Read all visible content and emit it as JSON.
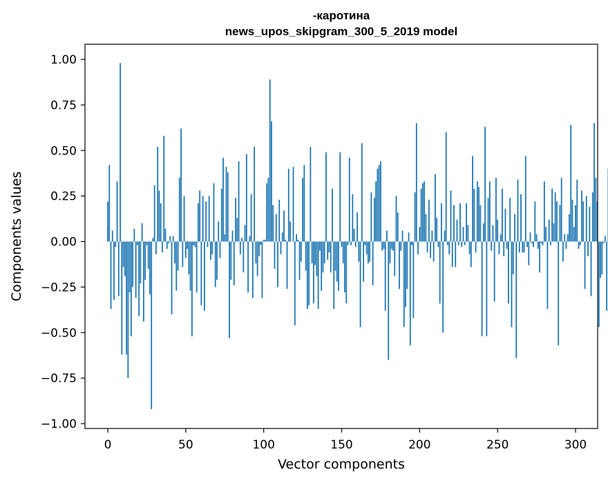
{
  "chart_data": {
    "type": "bar",
    "title_lines": [
      "-каротина",
      "news_upos_skipgram_300_5_2019 model"
    ],
    "xlabel": "Vector components",
    "ylabel": "Components values",
    "xlim": [
      -15,
      315
    ],
    "ylim": [
      -1.0,
      1.0
    ],
    "xticks": [
      0,
      50,
      100,
      150,
      200,
      250,
      300
    ],
    "xtick_labels": [
      "0",
      "50",
      "100",
      "150",
      "200",
      "250",
      "300"
    ],
    "yticks": [
      1.0,
      0.75,
      0.5,
      0.25,
      0.0,
      -0.25,
      -0.5,
      -0.75,
      -1.0
    ],
    "ytick_labels": [
      "1.00",
      "0.75",
      "0.50",
      "0.25",
      "0.00",
      "−0.25",
      "−0.50",
      "−0.75",
      "−1.00"
    ],
    "bar_color": "#1f77b4",
    "grid": false,
    "values": [
      0.22,
      0.42,
      -0.37,
      0.06,
      -0.32,
      -0.03,
      0.33,
      -0.3,
      0.98,
      -0.62,
      -0.14,
      -0.19,
      -0.62,
      -0.75,
      -0.28,
      -0.52,
      -0.25,
      0.07,
      -0.31,
      -0.02,
      -0.41,
      -0.23,
      0.1,
      -0.44,
      -0.21,
      -0.02,
      -0.15,
      -0.29,
      -0.92,
      0.02,
      0.31,
      -0.07,
      0.52,
      0.28,
      0.21,
      -0.06,
      0.58,
      0.07,
      -0.04,
      -0.01,
      0.03,
      -0.4,
      0.03,
      -0.12,
      -0.27,
      -0.16,
      0.35,
      0.62,
      -0.14,
      0.25,
      -0.09,
      -0.04,
      -0.18,
      -0.27,
      -0.52,
      -0.02,
      -0.03,
      -0.28,
      0.21,
      0.28,
      -0.35,
      0.25,
      -0.38,
      0.22,
      -0.03,
      0.25,
      -0.1,
      -0.07,
      0.32,
      -0.25,
      -0.21,
      0.11,
      -0.09,
      0.29,
      0.46,
      0.04,
      0.41,
      0.38,
      -0.53,
      -0.21,
      0.06,
      -0.24,
      0.24,
      0.13,
      0.44,
      -0.07,
      0.02,
      -0.17,
      0.09,
      0.48,
      -0.28,
      0.03,
      0.26,
      -0.31,
      0.52,
      -0.12,
      -0.19,
      -0.08,
      -0.02,
      -0.31,
      0.01,
      0.01,
      0.32,
      0.35,
      0.89,
      0.66,
      0.2,
      -0.15,
      0.15,
      -0.25,
      0.23,
      -0.07,
      0.05,
      0.17,
      0.01,
      -0.26,
      0.4,
      0.11,
      0.0,
      0.41,
      -0.46,
      0.04,
      0.01,
      -0.21,
      -0.11,
      0.35,
      0.42,
      -0.16,
      -0.37,
      -0.35,
      0.52,
      -0.12,
      -0.34,
      -0.13,
      -0.19,
      -0.37,
      -0.05,
      -0.27,
      -0.17,
      -0.12,
      0.49,
      -0.1,
      -0.06,
      -0.17,
      0.29,
      -0.37,
      -0.16,
      -0.22,
      -0.27,
      0.49,
      -0.03,
      -0.12,
      -0.28,
      -0.34,
      -0.02,
      0.46,
      -0.02,
      0.26,
      0.07,
      -0.03,
      0.16,
      -0.11,
      -0.47,
      0.54,
      -0.22,
      -0.02,
      -0.07,
      -0.12,
      -0.11,
      0.27,
      -0.24,
      0.24,
      0.33,
      0.4,
      0.42,
      0.44,
      -0.05,
      -0.04,
      -0.38,
      0.06,
      -0.65,
      -0.12,
      -0.04,
      -0.05,
      -0.19,
      0.25,
      0.16,
      -0.26,
      -0.05,
      0.06,
      -0.47,
      -0.36,
      -0.26,
      0.05,
      -0.57,
      -0.02,
      -0.42,
      0.27,
      0.65,
      -0.07,
      0.08,
      0.29,
      0.32,
      0.33,
      0.15,
      -0.06,
      0.23,
      -0.09,
      0.06,
      -0.11,
      0.37,
      0.13,
      -0.03,
      -0.34,
      0.21,
      -0.5,
      0.06,
      0.6,
      -0.02,
      -0.07,
      0.28,
      -0.14,
      0.2,
      -0.14,
      0.12,
      -0.02,
      0.21,
      -0.03,
      0.08,
      -0.02,
      0.21,
      0.09,
      -0.07,
      -0.14,
      0.47,
      0.29,
      -0.06,
      0.33,
      0.3,
      0.2,
      -0.52,
      0.1,
      0.63,
      -0.52,
      0.24,
      0.33,
      -0.05,
      0.09,
      -0.33,
      0.35,
      0.12,
      -0.07,
      0.04,
      0.29,
      -0.08,
      0.18,
      -0.04,
      -0.34,
      0.24,
      -0.47,
      -0.18,
      0.15,
      -0.64,
      0.34,
      -0.06,
      0.26,
      -0.06,
      -0.06,
      0.47,
      -0.03,
      -0.13,
      0.05,
      -0.01,
      -0.03,
      0.22,
      0.04,
      -0.04,
      -0.17,
      -0.01,
      -0.02,
      0.33,
      0.08,
      -0.37,
      0.12,
      -0.02,
      0.29,
      0.1,
      0.27,
      0.22,
      -0.57,
      0.2,
      0.35,
      -0.11,
      0.04,
      -0.04,
      0.04,
      0.15,
      0.64,
      0.23,
      0.08,
      0.2,
      0.34,
      -0.04,
      -0.02,
      0.28,
      0.22,
      -0.26,
      0.25,
      -0.08,
      0.19,
      -0.3,
      0.27,
      0.65,
      0.35,
      0.22,
      -0.47,
      -0.2,
      -0.18,
      -0.01,
      0.03,
      -0.38,
      0.4
    ]
  }
}
